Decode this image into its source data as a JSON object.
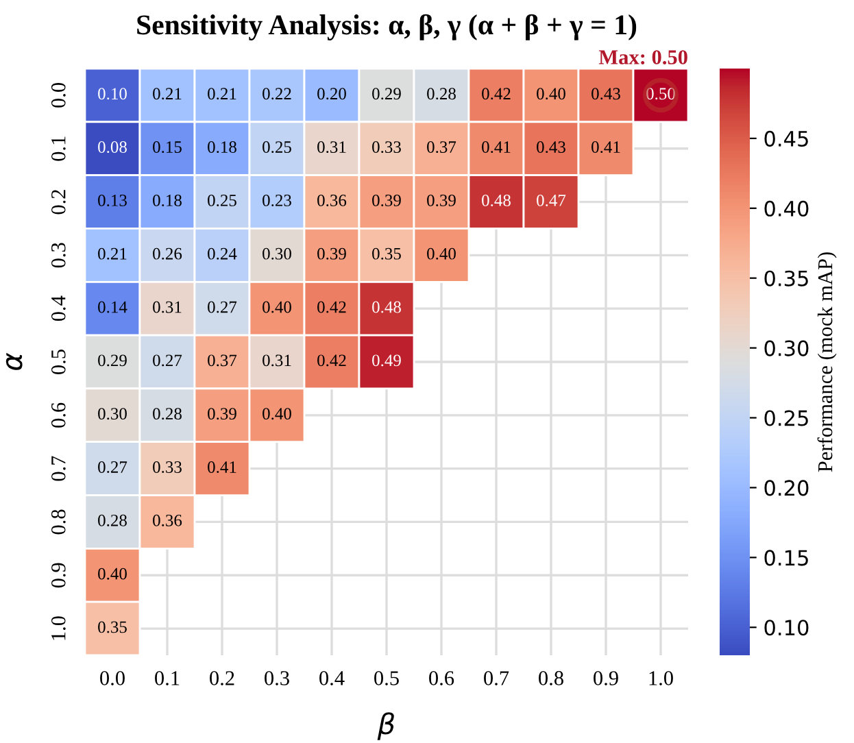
{
  "chart_data": {
    "type": "heatmap",
    "title": "Sensitivity Analysis: α, β, γ (α + β + γ = 1)",
    "xlabel": "β",
    "ylabel": "α",
    "clabel": "Performance (mock mAP)",
    "categories": [
      "0.0",
      "0.1",
      "0.2",
      "0.3",
      "0.4",
      "0.5",
      "0.6",
      "0.7",
      "0.8",
      "0.9",
      "1.0"
    ],
    "y_categories": [
      "0.0",
      "0.1",
      "0.2",
      "0.3",
      "0.4",
      "0.5",
      "0.6",
      "0.7",
      "0.8",
      "0.9",
      "1.0"
    ],
    "cells": [
      [
        0.1,
        0.21,
        0.21,
        0.22,
        0.2,
        0.29,
        0.28,
        0.42,
        0.4,
        0.43,
        0.5
      ],
      [
        0.08,
        0.15,
        0.18,
        0.25,
        0.31,
        0.33,
        0.37,
        0.41,
        0.43,
        0.41,
        null
      ],
      [
        0.13,
        0.18,
        0.25,
        0.23,
        0.36,
        0.39,
        0.39,
        0.48,
        0.47,
        null,
        null
      ],
      [
        0.21,
        0.26,
        0.24,
        0.3,
        0.39,
        0.35,
        0.4,
        null,
        null,
        null,
        null
      ],
      [
        0.14,
        0.31,
        0.27,
        0.4,
        0.42,
        0.48,
        null,
        null,
        null,
        null,
        null
      ],
      [
        0.29,
        0.27,
        0.37,
        0.31,
        0.42,
        0.49,
        null,
        null,
        null,
        null,
        null
      ],
      [
        0.3,
        0.28,
        0.39,
        0.4,
        null,
        null,
        null,
        null,
        null,
        null,
        null
      ],
      [
        0.27,
        0.33,
        0.41,
        null,
        null,
        null,
        null,
        null,
        null,
        null,
        null
      ],
      [
        0.28,
        0.36,
        null,
        null,
        null,
        null,
        null,
        null,
        null,
        null,
        null
      ],
      [
        0.4,
        null,
        null,
        null,
        null,
        null,
        null,
        null,
        null,
        null,
        null
      ],
      [
        0.35,
        null,
        null,
        null,
        null,
        null,
        null,
        null,
        null,
        null,
        null
      ]
    ],
    "cell_labels": [
      [
        "0.10",
        "0.21",
        "0.21",
        "0.22",
        "0.20",
        "0.29",
        "0.28",
        "0.42",
        "0.40",
        "0.43",
        "0.50"
      ],
      [
        "0.08",
        "0.15",
        "0.18",
        "0.25",
        "0.31",
        "0.33",
        "0.37",
        "0.41",
        "0.43",
        "0.41",
        null
      ],
      [
        "0.13",
        "0.18",
        "0.25",
        "0.23",
        "0.36",
        "0.39",
        "0.39",
        "0.48",
        "0.47",
        null,
        null
      ],
      [
        "0.21",
        "0.26",
        "0.24",
        "0.30",
        "0.39",
        "0.35",
        "0.40",
        null,
        null,
        null,
        null
      ],
      [
        "0.14",
        "0.31",
        "0.27",
        "0.40",
        "0.42",
        "0.48",
        null,
        null,
        null,
        null,
        null
      ],
      [
        "0.29",
        "0.27",
        "0.37",
        "0.31",
        "0.42",
        "0.49",
        null,
        null,
        null,
        null,
        null
      ],
      [
        "0.30",
        "0.28",
        "0.39",
        "0.40",
        null,
        null,
        null,
        null,
        null,
        null,
        null
      ],
      [
        "0.27",
        "0.33",
        "0.41",
        null,
        null,
        null,
        null,
        null,
        null,
        null,
        null
      ],
      [
        "0.28",
        "0.36",
        null,
        null,
        null,
        null,
        null,
        null,
        null,
        null,
        null
      ],
      [
        "0.40",
        null,
        null,
        null,
        null,
        null,
        null,
        null,
        null,
        null,
        null
      ],
      [
        "0.35",
        null,
        null,
        null,
        null,
        null,
        null,
        null,
        null,
        null,
        null
      ]
    ],
    "clim": [
      0.08,
      0.5
    ],
    "cticks": [
      {
        "value": 0.1,
        "label": "0.10"
      },
      0.15,
      {
        "value": 0.2,
        "label": "0.20"
      },
      0.25,
      {
        "value": 0.3,
        "label": "0.30"
      },
      0.35,
      {
        "value": 0.4,
        "label": "0.40"
      },
      0.45
    ],
    "grid": true,
    "data_labels": true,
    "annotations": [
      {
        "text": "Max: 0.50",
        "x": "1.0",
        "y": "0.0"
      }
    ]
  }
}
